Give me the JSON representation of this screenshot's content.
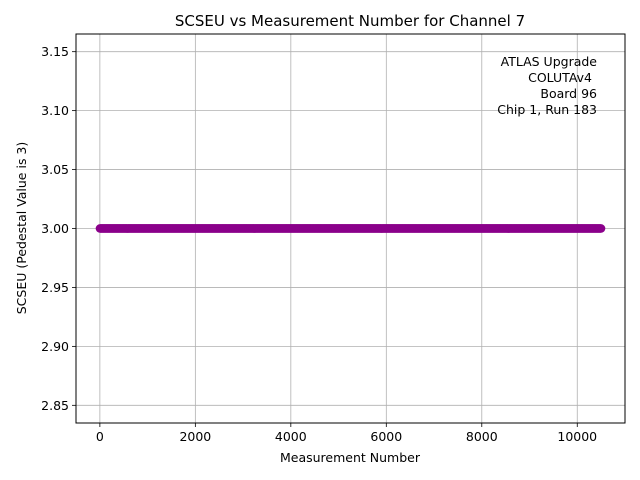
{
  "chart_data": {
    "type": "scatter",
    "title": "SCSEU vs Measurement Number for Channel 7",
    "xlabel": "Measurement Number",
    "ylabel": "SCSEU (Pedestal Value is 3)",
    "xlim": [
      -500,
      11000
    ],
    "ylim": [
      2.835,
      3.165
    ],
    "xticks": [
      0,
      2000,
      4000,
      6000,
      8000,
      10000
    ],
    "xtick_labels": [
      "0",
      "2000",
      "4000",
      "6000",
      "8000",
      "10000"
    ],
    "yticks": [
      2.85,
      2.9,
      2.95,
      3.0,
      3.05,
      3.1,
      3.15
    ],
    "ytick_labels": [
      "2.85",
      "2.90",
      "2.95",
      "3.00",
      "3.05",
      "3.10",
      "3.15"
    ],
    "grid": true,
    "marker_color": "#8b008b",
    "series": [
      {
        "x_start": 0,
        "x_end": 10500,
        "x_step": 10,
        "y": 3.0
      }
    ],
    "annotation": [
      "ATLAS Upgrade",
      "COLUTAv4",
      "Board 96",
      "Chip 1, Run 183"
    ],
    "annotation_position": "top-right"
  }
}
